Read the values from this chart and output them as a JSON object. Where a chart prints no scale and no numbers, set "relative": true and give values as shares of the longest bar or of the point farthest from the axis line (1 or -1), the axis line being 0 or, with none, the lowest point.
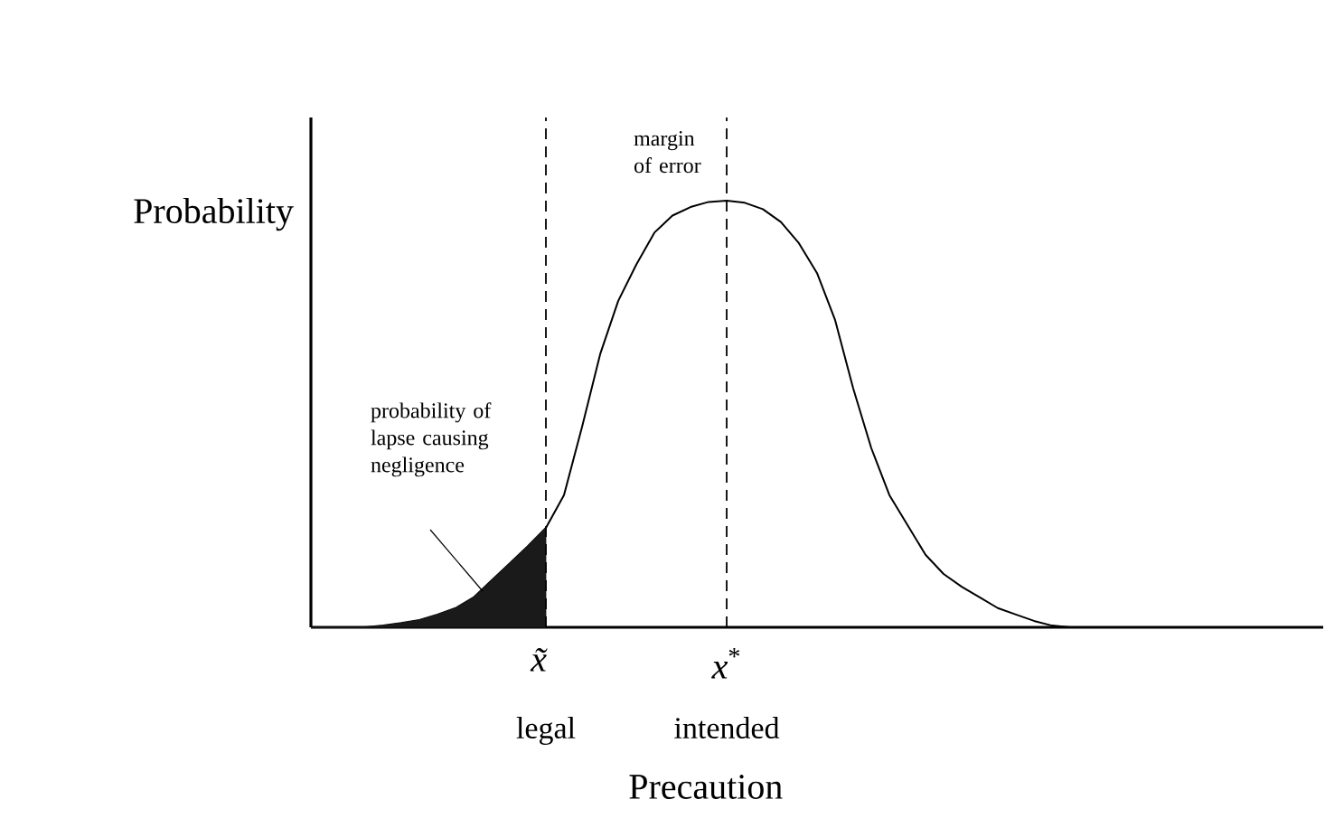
{
  "chart_data": {
    "type": "line",
    "relative": true,
    "xlabel": "Precaution",
    "ylabel": "Probability",
    "categories": [
      null,
      null,
      null,
      null,
      null,
      null,
      null,
      null,
      null,
      null,
      null,
      null,
      null,
      null,
      null,
      null,
      null,
      null,
      null,
      null,
      null,
      null,
      null,
      null,
      null,
      null,
      null,
      null,
      null,
      null,
      null,
      null,
      null,
      null,
      null,
      null,
      null,
      null,
      null,
      null,
      null,
      null,
      null,
      null,
      null,
      null,
      null,
      null,
      null,
      null,
      null,
      null,
      null,
      null,
      null,
      null,
      null
    ],
    "series": [
      {
        "color": "#000000",
        "values": [
          0,
          0,
          0,
          0,
          0.004,
          0.01,
          0.017,
          0.03,
          0.045,
          0.07,
          0.11,
          0.15,
          0.19,
          0.233,
          0.31,
          0.47,
          0.64,
          0.765,
          0.85,
          0.925,
          0.965,
          0.985,
          0.997,
          1,
          0.995,
          0.98,
          0.95,
          0.9,
          0.83,
          0.72,
          0.56,
          0.42,
          0.31,
          0.24,
          0.17,
          0.125,
          0.095,
          0.07,
          0.045,
          0.03,
          0.015,
          0.004,
          0,
          0,
          0,
          0,
          0,
          0,
          0,
          0,
          0,
          0,
          0,
          0,
          0,
          0,
          0
        ]
      },
      {
        "type": "area",
        "color": "#1a1a1a",
        "values": [
          0,
          0,
          0,
          0,
          0.004,
          0.01,
          0.017,
          0.03,
          0.045,
          0.07,
          0.11,
          0.15,
          0.19,
          0.233,
          null,
          null,
          null,
          null,
          null,
          null,
          null,
          null,
          null,
          null,
          null,
          null,
          null,
          null,
          null,
          null,
          null,
          null,
          null,
          null,
          null,
          null,
          null,
          null,
          null,
          null,
          null,
          null,
          null,
          null,
          null,
          null,
          null,
          null,
          null,
          null,
          null,
          null,
          null,
          null,
          null,
          null,
          null
        ]
      }
    ],
    "annotations": [
      "margin of error",
      "probability of lapse causing negligence",
      "*x̃*",
      "legal",
      "*x*$^{*}$",
      "intended"
    ],
    "marker": "none",
    "line_style": "solid"
  }
}
